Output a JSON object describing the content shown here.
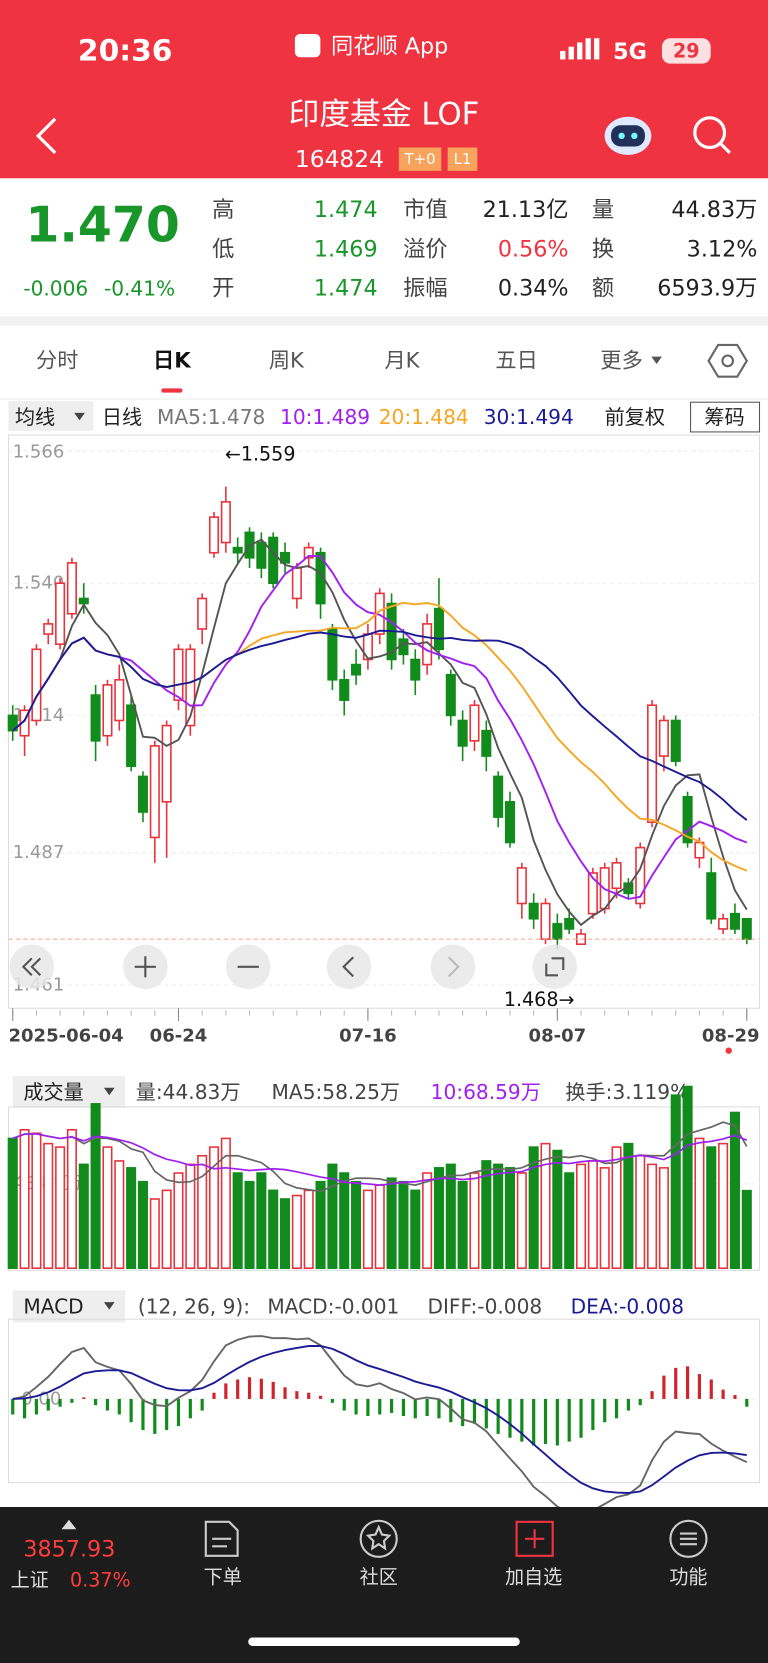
{
  "status": {
    "time": "20:36",
    "app": "同花顺 App",
    "network": "5G",
    "battery": "29"
  },
  "header": {
    "title": "印度基金 LOF",
    "code": "164824",
    "badges": [
      "T+0",
      "L1"
    ]
  },
  "quote": {
    "price": "1.470",
    "change": "-0.006",
    "change_pct": "-0.41%",
    "rows": [
      [
        [
          "高",
          "1.474"
        ],
        [
          "市值",
          "21.13亿"
        ],
        [
          "量",
          "44.83万"
        ]
      ],
      [
        [
          "低",
          "1.469"
        ],
        [
          "溢价",
          "0.56%"
        ],
        [
          "换",
          "3.12%"
        ]
      ],
      [
        [
          "开",
          "1.474"
        ],
        [
          "振幅",
          "0.34%"
        ],
        [
          "额",
          "6593.9万"
        ]
      ]
    ]
  },
  "tabs": [
    "分时",
    "日K",
    "周K",
    "月K",
    "五日",
    "更多"
  ],
  "legend": {
    "ma_menu": "均线",
    "period": "日线",
    "adjust": "前复权",
    "chips": "筹码"
  },
  "chart_data": {
    "type": "candlestick",
    "up_color": "#e8323c",
    "down_color": "#118c1c",
    "categories": [
      "2025-06-04",
      null,
      null,
      null,
      null,
      null,
      null,
      null,
      null,
      null,
      null,
      null,
      null,
      null,
      "06-24",
      null,
      null,
      null,
      null,
      null,
      null,
      null,
      null,
      null,
      null,
      null,
      null,
      null,
      null,
      null,
      "07-16",
      null,
      null,
      null,
      null,
      null,
      null,
      null,
      null,
      null,
      null,
      null,
      null,
      null,
      null,
      null,
      "08-07",
      null,
      null,
      null,
      null,
      null,
      null,
      null,
      null,
      null,
      null,
      null,
      null,
      null,
      null,
      null,
      "08-29"
    ],
    "ylim": [
      1.461,
      1.566
    ],
    "yticks": [
      1.566,
      {
        "value": 1.54,
        "label": "1.540"
      },
      1.514,
      1.487,
      1.461
    ],
    "grid": true,
    "annotations": [
      "←1.559",
      "1.468→"
    ],
    "ma_lines": [
      {
        "label": "MA5:1.478",
        "period": 5,
        "color": "#555555"
      },
      {
        "label": "10:1.489",
        "period": 10,
        "color": "#a020f0"
      },
      {
        "label": "20:1.484",
        "period": 20,
        "color": "#f5a623"
      },
      {
        "label": "30:1.494",
        "period": 30,
        "color": "#1b1b96"
      }
    ],
    "ohlc": [
      [
        1.514,
        1.516,
        1.509,
        1.511
      ],
      [
        1.51,
        1.516,
        1.506,
        1.515
      ],
      [
        1.513,
        1.528,
        1.512,
        1.527
      ],
      [
        1.53,
        1.533,
        1.528,
        1.532
      ],
      [
        1.528,
        1.541,
        1.527,
        1.54
      ],
      [
        1.534,
        1.545,
        1.533,
        1.544
      ],
      [
        1.537,
        1.54,
        1.534,
        1.536
      ],
      [
        1.518,
        1.52,
        1.505,
        1.509
      ],
      [
        1.51,
        1.521,
        1.508,
        1.52
      ],
      [
        1.513,
        1.524,
        1.511,
        1.521
      ],
      [
        1.516,
        1.518,
        1.503,
        1.504
      ],
      [
        1.502,
        1.503,
        1.493,
        1.495
      ],
      [
        1.49,
        1.509,
        1.485,
        1.508
      ],
      [
        1.497,
        1.513,
        1.486,
        1.512
      ],
      [
        1.517,
        1.528,
        1.515,
        1.527
      ],
      [
        1.512,
        1.528,
        1.51,
        1.527
      ],
      [
        1.531,
        1.538,
        1.528,
        1.537
      ],
      [
        1.546,
        1.554,
        1.545,
        1.553
      ],
      [
        1.548,
        1.559,
        1.546,
        1.556
      ],
      [
        1.547,
        1.549,
        1.544,
        1.546
      ],
      [
        1.55,
        1.551,
        1.543,
        1.545
      ],
      [
        1.548,
        1.55,
        1.541,
        1.543
      ],
      [
        1.549,
        1.55,
        1.539,
        1.54
      ],
      [
        1.546,
        1.548,
        1.542,
        1.544
      ],
      [
        1.537,
        1.544,
        1.535,
        1.543
      ],
      [
        1.545,
        1.548,
        1.543,
        1.547
      ],
      [
        1.546,
        1.547,
        1.533,
        1.536
      ],
      [
        1.531,
        1.532,
        1.519,
        1.521
      ],
      [
        1.521,
        1.523,
        1.514,
        1.517
      ],
      [
        1.524,
        1.527,
        1.52,
        1.522
      ],
      [
        1.525,
        1.532,
        1.523,
        1.53
      ],
      [
        1.53,
        1.539,
        1.528,
        1.538
      ],
      [
        1.536,
        1.538,
        1.523,
        1.525
      ],
      [
        1.529,
        1.531,
        1.524,
        1.526
      ],
      [
        1.525,
        1.527,
        1.518,
        1.521
      ],
      [
        1.524,
        1.534,
        1.522,
        1.532
      ],
      [
        1.535,
        1.541,
        1.525,
        1.527
      ],
      [
        1.522,
        1.523,
        1.512,
        1.514
      ],
      [
        1.513,
        1.515,
        1.505,
        1.508
      ],
      [
        1.509,
        1.517,
        1.507,
        1.516
      ],
      [
        1.511,
        1.513,
        1.503,
        1.506
      ],
      [
        1.502,
        1.503,
        1.492,
        1.494
      ],
      [
        1.497,
        1.499,
        1.488,
        1.489
      ],
      [
        1.477,
        1.485,
        1.474,
        1.484
      ],
      [
        1.477,
        1.479,
        1.472,
        1.474
      ],
      [
        1.47,
        1.478,
        1.469,
        1.477
      ],
      [
        1.473,
        1.475,
        1.468,
        1.47
      ],
      [
        1.474,
        1.476,
        1.471,
        1.472
      ],
      [
        1.469,
        1.472,
        1.469,
        1.471
      ],
      [
        1.475,
        1.484,
        1.474,
        1.483
      ],
      [
        1.476,
        1.485,
        1.475,
        1.484
      ],
      [
        1.48,
        1.486,
        1.478,
        1.485
      ],
      [
        1.481,
        1.482,
        1.478,
        1.479
      ],
      [
        1.477,
        1.489,
        1.476,
        1.488
      ],
      [
        1.493,
        1.517,
        1.492,
        1.516
      ],
      [
        1.506,
        1.514,
        1.503,
        1.513
      ],
      [
        1.513,
        1.514,
        1.504,
        1.505
      ],
      [
        1.498,
        1.499,
        1.488,
        1.489
      ],
      [
        1.486,
        1.49,
        1.484,
        1.489
      ],
      [
        1.483,
        1.486,
        1.473,
        1.474
      ],
      [
        1.472,
        1.475,
        1.471,
        1.474
      ],
      [
        1.475,
        1.477,
        1.471,
        1.472
      ],
      [
        1.474,
        1.474,
        1.469,
        1.47
      ]
    ],
    "volume": {
      "menu": "成交量",
      "legend": [
        "量:44.83万",
        "换手:3.119%"
      ],
      "ma_lines": [
        {
          "label": "MA5:58.25万",
          "period": 5,
          "color": "#666666"
        },
        {
          "label": "10:68.59万",
          "period": 10,
          "color": "#a020f0"
        }
      ],
      "ylim": [
        0,
        92
      ],
      "yticks": [
        {
          "value": 48.81,
          "label": "48.81万"
        }
      ],
      "values": [
        75,
        80,
        78,
        72,
        70,
        80,
        60,
        95,
        70,
        62,
        58,
        50,
        40,
        45,
        55,
        60,
        65,
        70,
        75,
        55,
        50,
        55,
        45,
        40,
        42,
        45,
        50,
        60,
        55,
        50,
        45,
        48,
        52,
        50,
        45,
        55,
        58,
        60,
        50,
        55,
        62,
        60,
        58,
        55,
        70,
        72,
        68,
        55,
        60,
        62,
        58,
        70,
        72,
        65,
        60,
        58,
        100,
        105,
        75,
        70,
        72,
        90,
        44.83
      ]
    },
    "macd": {
      "menu": "MACD",
      "params": "(12, 26, 9):",
      "legend": [
        "MACD:-0.001",
        "DIFF:-0.008",
        "DEA:-0.008"
      ],
      "ylim": [
        -0.0105,
        0.01
      ],
      "yticks": [
        {
          "value": 0,
          "label": "0.00"
        }
      ],
      "values": [
        -0.002,
        -0.0025,
        -0.002,
        -0.0015,
        -0.001,
        -0.0005,
        0.0002,
        -0.0008,
        -0.0015,
        -0.002,
        -0.003,
        -0.004,
        -0.0045,
        -0.004,
        -0.0035,
        -0.0025,
        -0.0015,
        0.0008,
        0.002,
        0.0025,
        0.0028,
        0.0026,
        0.0022,
        0.0015,
        0.001,
        0.0008,
        0.0004,
        -0.0005,
        -0.0015,
        -0.002,
        -0.0022,
        -0.002,
        -0.0018,
        -0.0022,
        -0.0025,
        -0.0022,
        -0.0025,
        -0.003,
        -0.0035,
        -0.0032,
        -0.0038,
        -0.0045,
        -0.005,
        -0.0055,
        -0.006,
        -0.0058,
        -0.006,
        -0.0055,
        -0.005,
        -0.004,
        -0.003,
        -0.0025,
        -0.0015,
        -0.0008,
        0.001,
        0.003,
        0.004,
        0.0042,
        0.0032,
        0.0025,
        0.0012,
        0.0005,
        -0.001
      ]
    }
  },
  "footer": {
    "index_value": "3857.93",
    "index_name": "上证",
    "index_pct": "0.37%",
    "nav": [
      "下单",
      "社区",
      "加自选",
      "功能"
    ]
  }
}
